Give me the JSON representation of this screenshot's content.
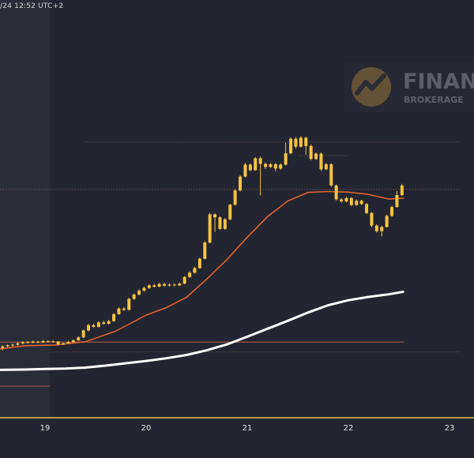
{
  "header": {
    "timestamp": "/24 12:52 UTC+2"
  },
  "watermark": {
    "brand": "FINAN",
    "sub": "BROKERAGE"
  },
  "colors": {
    "background": "#232530",
    "shaded_region": "#2a2c37",
    "candle": "#f6c343",
    "ma_fast": "#e0622f",
    "ma_slow": "#ffffff",
    "level_line": "#b5614f",
    "axis_line": "#e6c24a"
  },
  "chart_data": {
    "type": "candlestick",
    "x_ticks": [
      "19",
      "20",
      "21",
      "22",
      "23"
    ],
    "xlim": [
      18.55,
      23.1
    ],
    "ylim": [
      0,
      100
    ],
    "candles": [
      [
        18.58,
        11.5,
        12,
        10.8,
        12.3
      ],
      [
        18.63,
        12,
        12.3,
        11.6,
        12.6
      ],
      [
        18.68,
        12.3,
        12.5,
        11.9,
        12.8
      ],
      [
        18.73,
        12.5,
        12.9,
        12.2,
        13.3
      ],
      [
        18.78,
        12.9,
        13.3,
        12.6,
        13.6
      ],
      [
        18.83,
        13.3,
        13.1,
        12.8,
        13.6
      ],
      [
        18.88,
        13.1,
        13.4,
        12.9,
        13.8
      ],
      [
        18.93,
        13.4,
        13.2,
        12.9,
        13.7
      ],
      [
        18.98,
        13.2,
        13.6,
        13,
        13.9
      ],
      [
        19.03,
        13.6,
        13.4,
        13.1,
        13.8
      ],
      [
        19.08,
        13.4,
        13.5,
        13.1,
        13.9
      ],
      [
        19.13,
        13.5,
        12.6,
        12.3,
        13.6
      ],
      [
        19.18,
        12.6,
        12.9,
        12.4,
        13.2
      ],
      [
        19.23,
        12.9,
        13.3,
        12.7,
        13.7
      ],
      [
        19.28,
        13.3,
        13.8,
        13.1,
        14.1
      ],
      [
        19.33,
        13.8,
        14.7,
        13.6,
        15
      ],
      [
        19.38,
        14.7,
        16.8,
        14.5,
        17.1
      ],
      [
        19.43,
        16.8,
        18.4,
        16.5,
        18.8
      ],
      [
        19.48,
        18.4,
        17.9,
        17.6,
        18.8
      ],
      [
        19.53,
        17.9,
        19.2,
        17.7,
        19.6
      ],
      [
        19.58,
        19.2,
        18.8,
        18.5,
        19.7
      ],
      [
        19.63,
        18.8,
        19.6,
        18.6,
        20
      ],
      [
        19.68,
        19.6,
        21.7,
        19.4,
        22
      ],
      [
        19.73,
        21.7,
        23.4,
        21.5,
        23.8
      ],
      [
        19.78,
        23.4,
        23,
        22.7,
        23.8
      ],
      [
        19.83,
        23,
        26.3,
        22.8,
        26.7
      ],
      [
        19.88,
        26.3,
        27.6,
        26,
        28
      ],
      [
        19.93,
        27.6,
        28.8,
        27.4,
        29.2
      ],
      [
        19.98,
        28.8,
        29.6,
        28.5,
        30
      ],
      [
        20.03,
        29.6,
        30.4,
        29.3,
        30.8
      ],
      [
        20.08,
        30.4,
        30,
        29.7,
        30.8
      ],
      [
        20.13,
        30,
        30.8,
        29.8,
        31.2
      ],
      [
        20.18,
        30.8,
        30.3,
        30,
        31.2
      ],
      [
        20.23,
        30.3,
        30.6,
        30.1,
        31
      ],
      [
        20.28,
        30.6,
        30.4,
        30.1,
        31
      ],
      [
        20.33,
        30.4,
        30.9,
        30.2,
        31.3
      ],
      [
        20.38,
        30.9,
        32.9,
        30.7,
        33.2
      ],
      [
        20.43,
        32.9,
        34.2,
        32.6,
        34.6
      ],
      [
        20.48,
        34.2,
        35.6,
        33.9,
        36
      ],
      [
        20.53,
        35.6,
        38.4,
        35.4,
        38.8
      ],
      [
        20.58,
        38.4,
        43.3,
        38.2,
        43.7
      ],
      [
        20.63,
        43.3,
        51.8,
        43,
        52.2
      ],
      [
        20.68,
        51.8,
        50.9,
        46.5,
        52.1
      ],
      [
        20.73,
        50.9,
        47.4,
        47.1,
        51.2
      ],
      [
        20.78,
        47.4,
        50.3,
        47.1,
        50.7
      ],
      [
        20.83,
        50.3,
        54.7,
        50,
        55
      ],
      [
        20.88,
        54.7,
        59,
        54.4,
        59.4
      ],
      [
        20.93,
        59,
        63.2,
        58.7,
        63.6
      ],
      [
        20.98,
        63.2,
        66.8,
        62.9,
        67.3
      ],
      [
        21.03,
        66.8,
        65.1,
        64.8,
        67.2
      ],
      [
        21.08,
        65.1,
        68.7,
        64.9,
        69.1
      ],
      [
        21.13,
        68.7,
        67,
        57.5,
        69.2
      ],
      [
        21.18,
        67,
        66.1,
        65.5,
        67.4
      ],
      [
        21.23,
        66.1,
        66.9,
        65.8,
        67.3
      ],
      [
        21.28,
        66.9,
        65.6,
        64.8,
        67.3
      ],
      [
        21.33,
        65.6,
        66.8,
        65.2,
        67.2
      ],
      [
        21.38,
        66.8,
        70.2,
        66.5,
        73.4
      ],
      [
        21.43,
        70.2,
        74.6,
        69.9,
        75
      ],
      [
        21.48,
        74.6,
        72.2,
        71.6,
        75.1
      ],
      [
        21.53,
        72.2,
        74.9,
        71.9,
        75.4
      ],
      [
        21.58,
        74.9,
        72.4,
        69.8,
        75.2
      ],
      [
        21.63,
        72.4,
        68.5,
        68.1,
        72.8
      ],
      [
        21.68,
        68.5,
        70.1,
        68.2,
        70.5
      ],
      [
        21.73,
        70.1,
        65.4,
        64.9,
        70.4
      ],
      [
        21.78,
        65.4,
        66.9,
        65.1,
        67.3
      ],
      [
        21.83,
        66.9,
        60.5,
        60.1,
        67.2
      ],
      [
        21.88,
        60.5,
        56.3,
        55.9,
        60.8
      ],
      [
        21.93,
        56.3,
        55.7,
        55.3,
        56.7
      ],
      [
        21.98,
        55.7,
        56.7,
        55.4,
        57.1
      ],
      [
        22.03,
        56.7,
        54.6,
        54.3,
        57
      ],
      [
        22.08,
        54.6,
        55.9,
        54.4,
        56.3
      ],
      [
        22.13,
        55.9,
        54.9,
        54.6,
        56.2
      ],
      [
        22.18,
        54.9,
        52.2,
        51.8,
        55.2
      ],
      [
        22.23,
        52.2,
        48.4,
        47.9,
        52.5
      ],
      [
        22.28,
        48.4,
        46.7,
        46.3,
        48.8
      ],
      [
        22.33,
        46.7,
        48,
        45.2,
        48.4
      ],
      [
        22.38,
        48,
        51.3,
        47.8,
        51.7
      ],
      [
        22.43,
        51.3,
        54,
        51.1,
        54.4
      ],
      [
        22.48,
        54,
        57.6,
        53.8,
        58.8
      ],
      [
        22.53,
        57.6,
        60.5,
        57.3,
        61
      ]
    ],
    "ma_fast": {
      "x": [
        18.55,
        18.8,
        19.1,
        19.4,
        19.7,
        20.0,
        20.2,
        20.4,
        20.6,
        20.8,
        21.0,
        21.2,
        21.4,
        21.6,
        21.8,
        22.0,
        22.2,
        22.4,
        22.55
      ],
      "y": [
        11.2,
        12.2,
        12.4,
        13.4,
        16.6,
        21.4,
        23.7,
        26.8,
        32.3,
        38.2,
        44.9,
        51.1,
        55.8,
        58.4,
        58.7,
        58.5,
        57.8,
        56.4,
        56.7
      ]
    },
    "ma_slow": {
      "x": [
        18.55,
        18.8,
        19.0,
        19.2,
        19.4,
        19.6,
        19.8,
        20.0,
        20.2,
        20.4,
        20.6,
        20.8,
        21.0,
        21.2,
        21.4,
        21.6,
        21.8,
        22.0,
        22.2,
        22.4,
        22.55
      ],
      "y": [
        4.9,
        5.0,
        5.2,
        5.3,
        5.6,
        6.2,
        6.9,
        7.6,
        8.4,
        9.4,
        10.8,
        12.6,
        14.9,
        17.3,
        19.7,
        22.2,
        24.4,
        25.9,
        26.9,
        27.7,
        28.5
      ]
    },
    "levels": [
      {
        "y": 59.3,
        "style": "dotted",
        "x_start": 18.55,
        "x_end": 23.1
      },
      {
        "y": 13.3,
        "style": "solid",
        "x_start": 18.55,
        "x_end": 22.55
      },
      {
        "y": 0.0,
        "style": "solid",
        "x_start": 18.55,
        "x_end": 19.05
      },
      {
        "y": 10.3,
        "style": "dotted",
        "x_start": 19.05,
        "x_end": 23.1
      },
      {
        "y": 73.6,
        "style": "dotted",
        "x_start": 19.4,
        "x_end": 23.1
      },
      {
        "y": 69.5,
        "style": "dotted",
        "x_start": 21.5,
        "x_end": 22.0
      }
    ],
    "shaded_region": {
      "x_start": 18.55,
      "x_end": 19.05
    }
  }
}
